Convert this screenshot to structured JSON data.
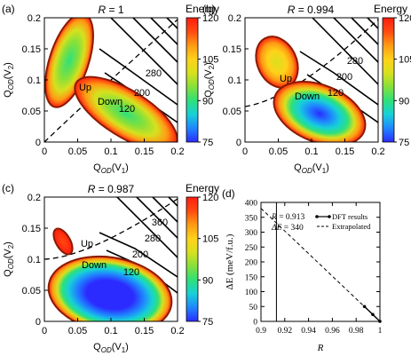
{
  "colors": {
    "colormap": [
      "#2b2bff",
      "#1f86ff",
      "#17d0d8",
      "#2ee07a",
      "#86e03a",
      "#d8e01e",
      "#ffd21a",
      "#ff9a14",
      "#ff4a10",
      "#ff1e10"
    ],
    "boundary": "#8b1a00",
    "contour": "#000000"
  },
  "chart_data": [
    {
      "panel": "(a)",
      "type": "heatmap",
      "title": "R = 1",
      "title_parts": {
        "var": "R",
        "rest": " = 1"
      },
      "colorbar_label": "Energy",
      "colorbar_ticks": [
        "75",
        "90",
        "105",
        "120"
      ],
      "colorbar_range": [
        75,
        120
      ],
      "xlabel": {
        "main": "Q",
        "sub": "OD",
        "tail": "(V",
        "sub2": "1",
        "end": ")"
      },
      "ylabel": {
        "main": "Q",
        "sub": "OD",
        "tail": "(V",
        "sub2": "2",
        "end": ")"
      },
      "xlim": [
        0,
        0.2
      ],
      "ylim": [
        0,
        0.2
      ],
      "x_ticks": [
        "0",
        "0.05",
        "0.1",
        "0.15",
        "0.2"
      ],
      "y_ticks": [
        "0",
        "0.05",
        "0.1",
        "0.15",
        "0.2"
      ],
      "minima": [
        {
          "label": "Up",
          "x": 0.035,
          "y": 0.075
        },
        {
          "label": "Down",
          "x": 0.12,
          "y": 0.035
        }
      ],
      "contour_labels": [
        "280",
        "200",
        "120"
      ],
      "grid": false
    },
    {
      "panel": "(b)",
      "type": "heatmap",
      "title": "R = 0.994",
      "title_parts": {
        "var": "R",
        "rest": " = 0.994"
      },
      "colorbar_label": "Energy",
      "colorbar_ticks": [
        "75",
        "90",
        "105",
        "120"
      ],
      "colorbar_range": [
        75,
        120
      ],
      "xlabel": {
        "main": "Q",
        "sub": "OD",
        "tail": "(V",
        "sub2": "1",
        "end": ")"
      },
      "ylabel": {
        "main": "Q",
        "sub": "OD",
        "tail": "(V",
        "sub2": "2",
        "end": ")"
      },
      "xlim": [
        0,
        0.2
      ],
      "ylim": [
        0,
        0.2
      ],
      "x_ticks": [
        "0",
        "0.05",
        "0.1",
        "0.15",
        "0.2"
      ],
      "y_ticks": [
        "0",
        "0.05",
        "0.1",
        "0.15",
        "0.2"
      ],
      "minima": [
        {
          "label": "Up",
          "x": 0.03,
          "y": 0.125
        },
        {
          "label": "Down",
          "x": 0.12,
          "y": 0.035
        }
      ],
      "contour_labels": [
        "280",
        "200",
        "120"
      ],
      "grid": false
    },
    {
      "panel": "(c)",
      "type": "heatmap",
      "title": "R = 0.987",
      "title_parts": {
        "var": "R",
        "rest": " = 0.987"
      },
      "colorbar_label": "Energy",
      "colorbar_ticks": [
        "75",
        "90",
        "105",
        "120"
      ],
      "colorbar_range": [
        75,
        120
      ],
      "xlabel": {
        "main": "Q",
        "sub": "OD",
        "tail": "(V",
        "sub2": "1",
        "end": ")"
      },
      "ylabel": {
        "main": "Q",
        "sub": "OD",
        "tail": "(V",
        "sub2": "2",
        "end": ")"
      },
      "xlim": [
        0,
        0.2
      ],
      "ylim": [
        0,
        0.2
      ],
      "x_ticks": [
        "0",
        "0.05",
        "0.1",
        "0.15",
        "0.2"
      ],
      "y_ticks": [
        "0",
        "0.05",
        "0.1",
        "0.15",
        "0.2"
      ],
      "minima": [
        {
          "label": "Up",
          "x": 0.027,
          "y": 0.12
        },
        {
          "label": "Down",
          "x": 0.1,
          "y": 0.045
        }
      ],
      "contour_labels": [
        "360",
        "280",
        "200",
        "120"
      ],
      "grid": false
    },
    {
      "panel": "(d)",
      "type": "line",
      "xlabel": "R",
      "ylabel": "ΔE (meV/f.u.)",
      "xlim": [
        0.9,
        1.0
      ],
      "ylim": [
        0,
        400
      ],
      "x_ticks": [
        "0.9",
        "0.92",
        "0.94",
        "0.96",
        "0.98",
        "1"
      ],
      "y_ticks": [
        "0",
        "50",
        "100",
        "150",
        "200",
        "250",
        "300",
        "350",
        "400"
      ],
      "annotation": [
        "R = 0.913",
        "ΔE = 340"
      ],
      "annotation_var": [
        "R",
        "ΔE"
      ],
      "annotation_value": [
        " = 0.913",
        " = 340"
      ],
      "vline_x": 0.913,
      "legend": {
        "position": "top-right",
        "entries": [
          "DFT results",
          "Extrapolated"
        ]
      },
      "series": [
        {
          "name": "DFT results",
          "style": "solid-markers",
          "x": [
            0.987,
            0.994,
            1.0
          ],
          "y": [
            50,
            23,
            0
          ]
        },
        {
          "name": "Extrapolated",
          "style": "dashed",
          "x": [
            0.9,
            1.0
          ],
          "y": [
            380,
            0
          ]
        }
      ],
      "grid": false
    }
  ]
}
